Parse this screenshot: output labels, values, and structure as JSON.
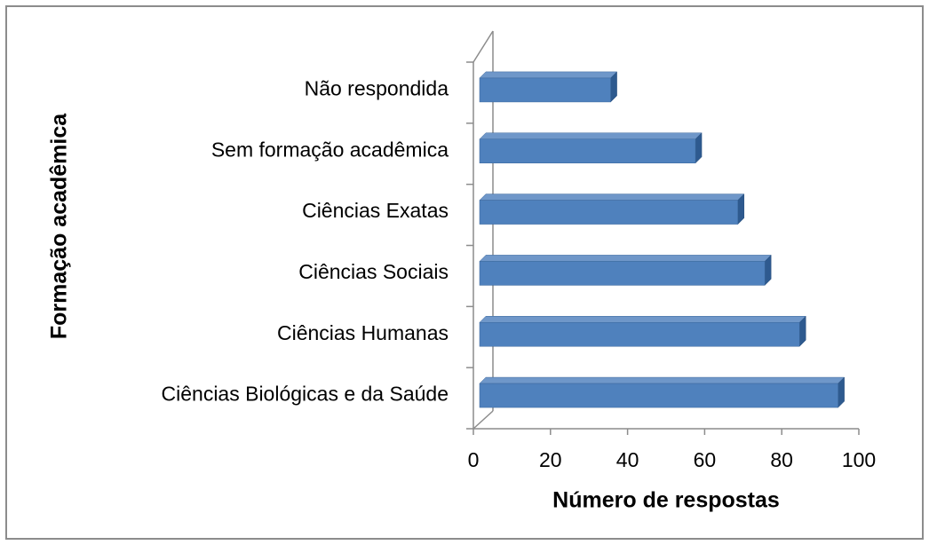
{
  "chart_data": {
    "type": "bar3d_horizontal",
    "categories": [
      "Não respondida",
      "Sem formação acadêmica",
      "Ciências Exatas",
      "Ciências Sociais",
      "Ciências Humanas",
      "Ciências Biológicas e da Saúde"
    ],
    "values": [
      34,
      56,
      67,
      74,
      83,
      93
    ],
    "color": "#4f81bd",
    "xlabel": "Número de respostas",
    "ylabel": "Formação acadêmica",
    "xlim": [
      0,
      100
    ],
    "xticks": [
      0,
      20,
      40,
      60,
      80,
      100
    ]
  }
}
